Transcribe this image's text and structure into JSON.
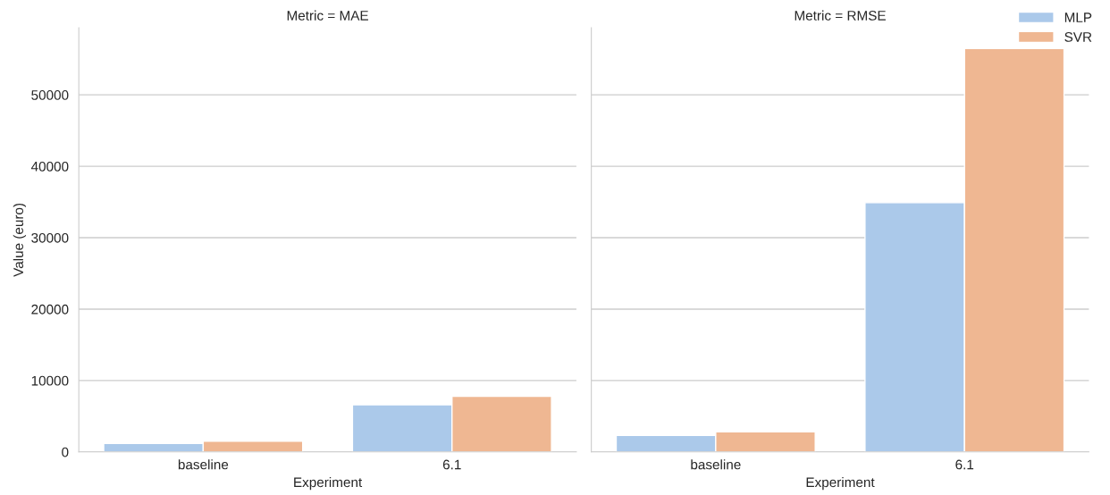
{
  "chart_data": [
    {
      "type": "bar",
      "title": "Metric = MAE",
      "xlabel": "Experiment",
      "ylabel": "Value (euro)",
      "categories": [
        "baseline",
        "6.1"
      ],
      "series": [
        {
          "name": "MLP",
          "color": "#abc9ea",
          "values": [
            1200,
            6600
          ]
        },
        {
          "name": "SVR",
          "color": "#efb792",
          "values": [
            1500,
            7800
          ]
        }
      ],
      "ylim": [
        0,
        59400
      ],
      "yticks": [
        0,
        10000,
        20000,
        30000,
        40000,
        50000
      ],
      "grid": "y",
      "legend": "top right"
    },
    {
      "type": "bar",
      "title": "Metric = RMSE",
      "xlabel": "Experiment",
      "categories": [
        "baseline",
        "6.1"
      ],
      "series": [
        {
          "color": "#abc9ea",
          "values": [
            2300,
            34900
          ]
        },
        {
          "color": "#efb792",
          "values": [
            2800,
            56500
          ]
        }
      ],
      "ylim": [
        0,
        59400
      ],
      "yticks": [
        0,
        10000,
        20000,
        30000,
        40000,
        50000
      ],
      "grid": "y",
      "tick_labels": "x"
    }
  ]
}
